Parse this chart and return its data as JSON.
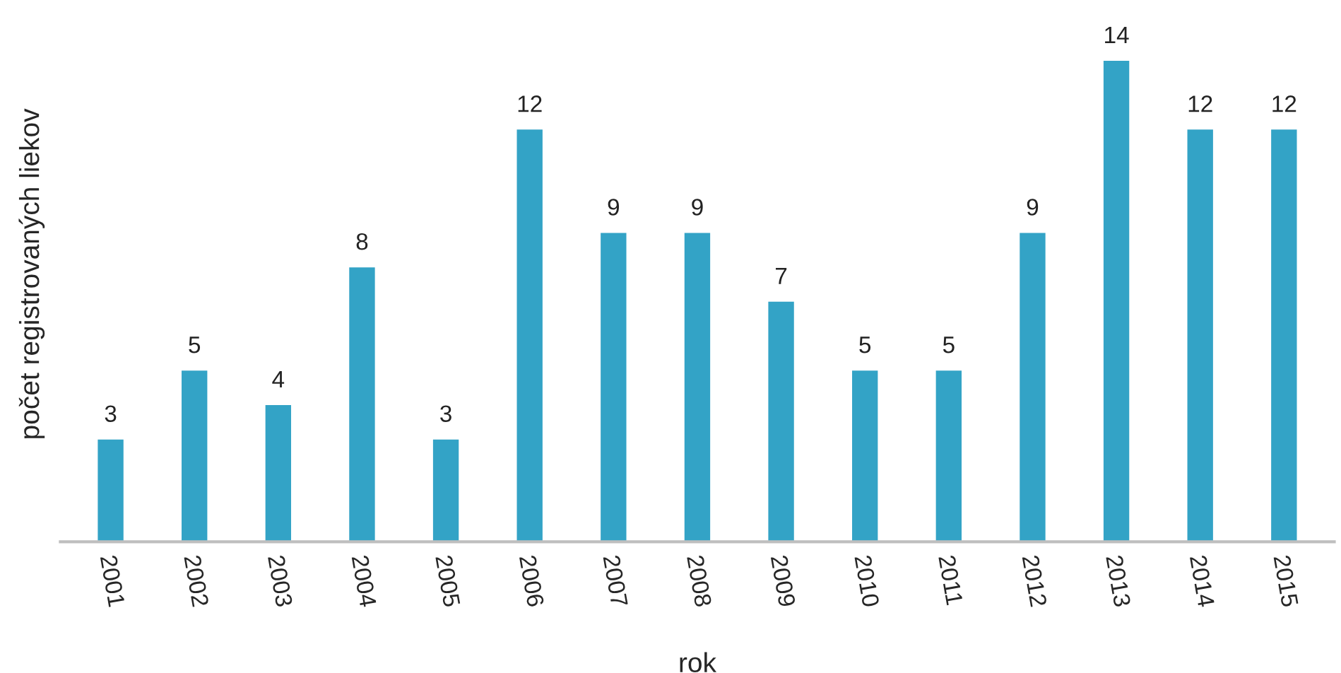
{
  "chart_data": {
    "type": "bar",
    "xlabel": "rok",
    "ylabel": "počet registrovaných liekov",
    "categories": [
      "2001",
      "2002",
      "2003",
      "2004",
      "2005",
      "2006",
      "2007",
      "2008",
      "2009",
      "2010",
      "2011",
      "2012",
      "2013",
      "2014",
      "2015"
    ],
    "series": [
      {
        "color": "#33a3c6",
        "values": [
          3,
          5,
          4,
          8,
          3,
          12,
          9,
          9,
          7,
          5,
          5,
          9,
          14,
          12,
          12
        ]
      }
    ],
    "data_labels": true,
    "tick_labels": "x",
    "grid": false,
    "legend": false
  }
}
